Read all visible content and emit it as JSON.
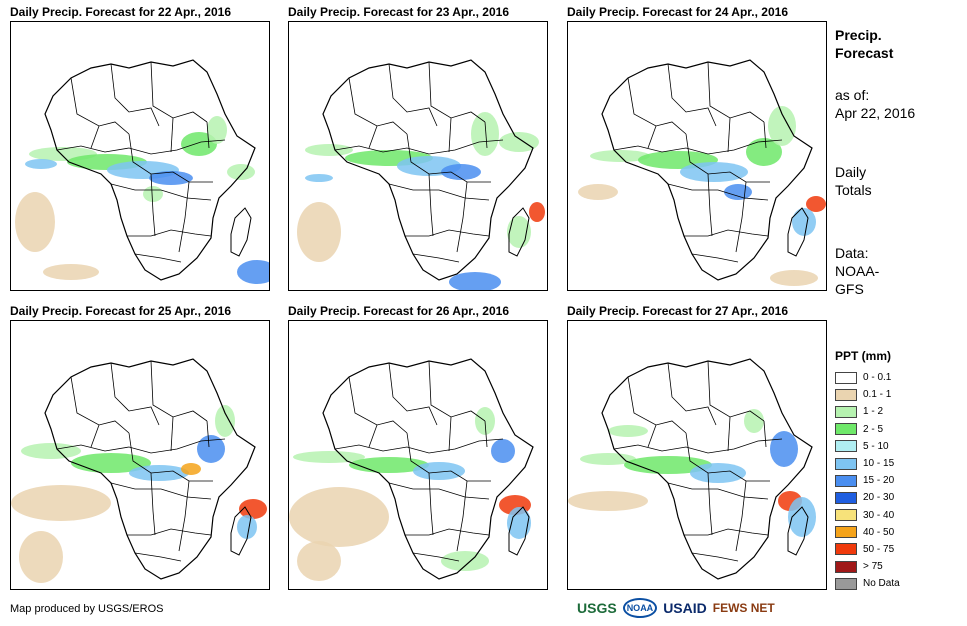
{
  "panels": [
    {
      "title": "Daily Precip. Forecast for 22 Apr., 2016"
    },
    {
      "title": "Daily Precip. Forecast for 23 Apr., 2016"
    },
    {
      "title": "Daily Precip. Forecast for 24 Apr., 2016"
    },
    {
      "title": "Daily Precip. Forecast for 25 Apr., 2016"
    },
    {
      "title": "Daily Precip. Forecast for 26 Apr., 2016"
    },
    {
      "title": "Daily Precip. Forecast for 27 Apr., 2016"
    }
  ],
  "sidebar": {
    "heading_line1": "Precip.",
    "heading_line2": "Forecast",
    "asof_line1": "as of:",
    "asof_line2": "Apr 22, 2016",
    "totals_line1": "Daily",
    "totals_line2": "Totals",
    "data_line1": "Data:",
    "data_line2": "NOAA-",
    "data_line3": "GFS"
  },
  "legend": {
    "title": "PPT (mm)",
    "items": [
      {
        "label": "0 - 0.1",
        "color": "#ffffff"
      },
      {
        "label": "0.1 - 1",
        "color": "#ead4b0"
      },
      {
        "label": "1 - 2",
        "color": "#b6f2b0"
      },
      {
        "label": "2 - 5",
        "color": "#6fe86a"
      },
      {
        "label": "5 - 10",
        "color": "#b0eef2"
      },
      {
        "label": "10 - 15",
        "color": "#7ec4f2"
      },
      {
        "label": "15 - 20",
        "color": "#4a8ef0"
      },
      {
        "label": "20 - 30",
        "color": "#1f5ee0"
      },
      {
        "label": "30 - 40",
        "color": "#f7e27a"
      },
      {
        "label": "40 - 50",
        "color": "#f5a31a"
      },
      {
        "label": "50 - 75",
        "color": "#f03a0c"
      },
      {
        "label": "> 75",
        "color": "#a01818"
      },
      {
        "label": "No Data",
        "color": "#999999"
      }
    ]
  },
  "footer": {
    "credit": "Map produced by USGS/EROS",
    "logo_usgs": "USGS",
    "logo_noaa": "NOAA",
    "logo_usaid": "USAID",
    "logo_fews": "FEWS NET"
  }
}
